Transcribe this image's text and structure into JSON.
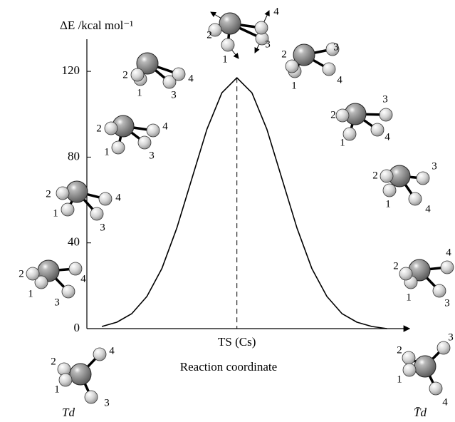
{
  "chart_data": {
    "type": "line",
    "y_label": "ΔE /kcal mol⁻¹",
    "x_label": "Reaction coordinate",
    "x": [
      -0.9,
      -0.8,
      -0.7,
      -0.6,
      -0.5,
      -0.4,
      -0.3,
      -0.2,
      -0.1,
      0,
      0.1,
      0.2,
      0.3,
      0.4,
      0.5,
      0.6,
      0.7,
      0.8,
      0.9,
      1.0
    ],
    "values": [
      1,
      3,
      7,
      15,
      28,
      47,
      70,
      93,
      110,
      117,
      110,
      93,
      70,
      47,
      28,
      15,
      7,
      3,
      1,
      0
    ],
    "color": "#000000",
    "xlim": [
      -1,
      1.15
    ],
    "ylim": [
      0,
      135
    ],
    "yticks": [
      0,
      40,
      80,
      120
    ],
    "xticks": [
      {
        "value": 0,
        "label": "TS (Cs)"
      }
    ],
    "annotations": [
      "Td",
      "T̄d"
    ],
    "molecules": [
      [
        "1",
        "2",
        "3",
        "4"
      ],
      [
        "1",
        "2",
        "3",
        "4"
      ],
      [
        "1",
        "2",
        "3",
        "4"
      ],
      [
        "1",
        "2",
        "3",
        "4"
      ],
      [
        "1",
        "2",
        "3",
        "4"
      ],
      [
        "1",
        "2",
        "3",
        "4"
      ],
      [
        "1",
        "2",
        "3",
        "4"
      ],
      [
        "1",
        "2",
        "3",
        "4"
      ],
      [
        "1",
        "2",
        "3",
        "4"
      ],
      [
        "1",
        "2",
        "3",
        "4"
      ],
      [
        "1",
        "2",
        "3",
        "4"
      ]
    ]
  }
}
